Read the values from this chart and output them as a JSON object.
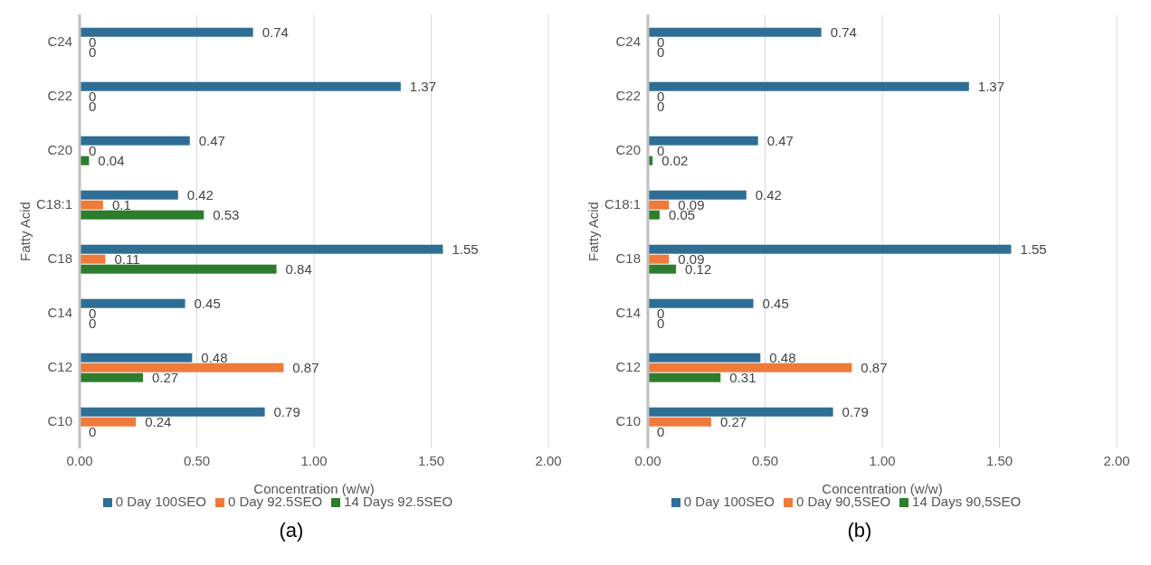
{
  "chart_data": [
    {
      "type": "bar",
      "orientation": "horizontal",
      "categories": [
        "C24",
        "C22",
        "C20",
        "C18:1",
        "C18",
        "C14",
        "C12",
        "C10"
      ],
      "xlabel": "Concentration (w/w)",
      "ylabel": "Fatty Acid",
      "xlim": [
        0,
        2
      ],
      "xticks": [
        {
          "value": 0,
          "label": "0.00"
        },
        {
          "value": 0.5,
          "label": "0.50"
        },
        {
          "value": 1,
          "label": "1.00"
        },
        {
          "value": 1.5,
          "label": "1.50"
        },
        {
          "value": 2,
          "label": "2.00"
        }
      ],
      "grid": "x",
      "legend": "bottom",
      "data_labels": true,
      "annotations": [
        "(a)"
      ],
      "series": [
        {
          "name": "0 Day 100SEO",
          "color": "#2e6e94",
          "values": [
            0.74,
            1.37,
            0.47,
            0.42,
            1.55,
            0.45,
            0.48,
            0.79
          ]
        },
        {
          "name": "0 Day 92.5SEO",
          "color": "#f07a3a",
          "values": [
            0,
            0,
            0,
            0.1,
            0.11,
            0,
            0.87,
            0.24
          ]
        },
        {
          "name": "14 Days 92.5SEO",
          "color": "#2d7d2d",
          "values": [
            0,
            0,
            0.04,
            0.53,
            0.84,
            0,
            0.27,
            0
          ]
        }
      ]
    },
    {
      "type": "bar",
      "orientation": "horizontal",
      "categories": [
        "C24",
        "C22",
        "C20",
        "C18:1",
        "C18",
        "C14",
        "C12",
        "C10"
      ],
      "xlabel": "Concentration (w/w)",
      "ylabel": "Fatty Acid",
      "xlim": [
        0,
        2
      ],
      "xticks": [
        {
          "value": 0,
          "label": "0.00"
        },
        {
          "value": 0.5,
          "label": "0.50"
        },
        {
          "value": 1,
          "label": "1.00"
        },
        {
          "value": 1.5,
          "label": "1.50"
        },
        {
          "value": 2,
          "label": "2.00"
        }
      ],
      "grid": "x",
      "legend": "bottom",
      "data_labels": true,
      "annotations": [
        "(b)"
      ],
      "series": [
        {
          "name": "0 Day 100SEO",
          "color": "#2e6e94",
          "values": [
            0.74,
            1.37,
            0.47,
            0.42,
            1.55,
            0.45,
            0.48,
            0.79
          ]
        },
        {
          "name": "0 Day 90,5SEO",
          "color": "#f07a3a",
          "values": [
            0,
            0,
            0,
            0.09,
            0.09,
            0,
            0.87,
            0.27
          ]
        },
        {
          "name": "14 Days 90,5SEO",
          "color": "#2d7d2d",
          "values": [
            0,
            0,
            0.02,
            0.05,
            0.12,
            0,
            0.31,
            0
          ]
        }
      ]
    }
  ]
}
